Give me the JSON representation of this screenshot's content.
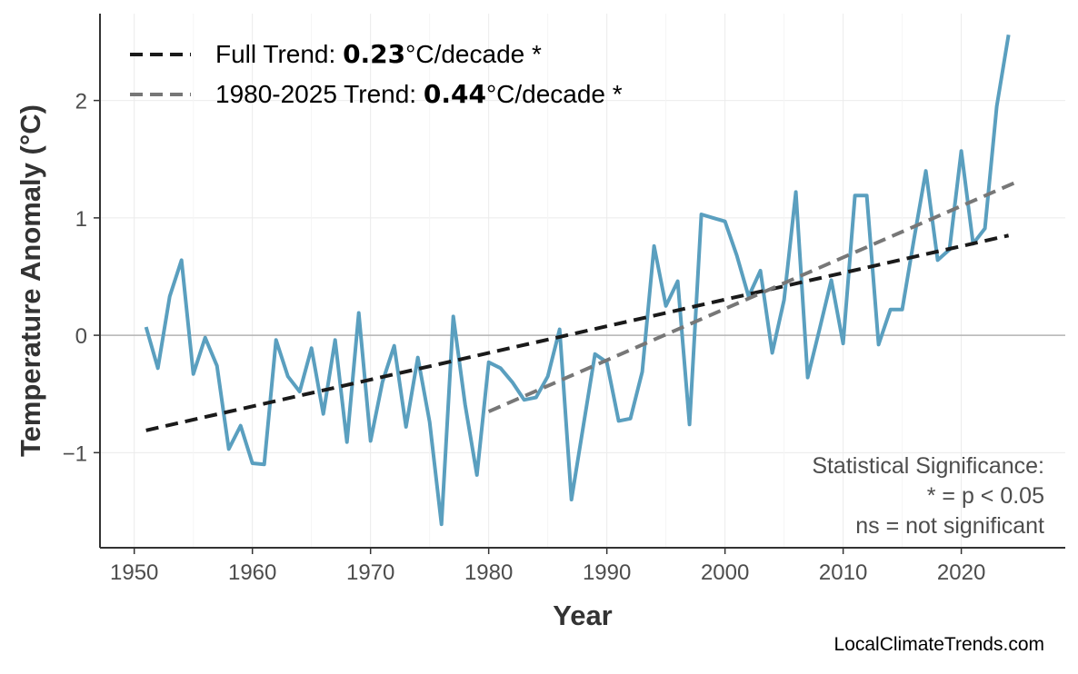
{
  "chart_data": {
    "type": "line",
    "xlabel": "Year",
    "ylabel": "Temperature Anomaly (°C)",
    "xlim": [
      1947.1,
      2028.8
    ],
    "ylim": [
      -1.81,
      2.74
    ],
    "x_ticks": [
      1950,
      1960,
      1970,
      1980,
      1990,
      2000,
      2010,
      2020
    ],
    "y_ticks": [
      -1,
      0,
      1,
      2
    ],
    "y_tick_labels": [
      "−1",
      "0",
      "1",
      "2"
    ],
    "grid": true,
    "zero_line": true,
    "series": [
      {
        "color": "#5a9fbf",
        "x": [
          1951,
          1952,
          1953,
          1954,
          1955,
          1956,
          1957,
          1958,
          1959,
          1960,
          1961,
          1962,
          1963,
          1964,
          1965,
          1966,
          1967,
          1968,
          1969,
          1970,
          1971,
          1972,
          1973,
          1974,
          1975,
          1976,
          1977,
          1978,
          1979,
          1980,
          1981,
          1982,
          1983,
          1984,
          1985,
          1986,
          1987,
          1988,
          1989,
          1990,
          1991,
          1992,
          1993,
          1994,
          1995,
          1996,
          1997,
          1998,
          1999,
          2000,
          2001,
          2002,
          2003,
          2004,
          2005,
          2006,
          2007,
          2008,
          2009,
          2010,
          2011,
          2012,
          2013,
          2014,
          2015,
          2016,
          2017,
          2018,
          2019,
          2020,
          2021,
          2022,
          2023,
          2024
        ],
        "y": [
          0.07,
          -0.28,
          0.33,
          0.64,
          -0.33,
          -0.02,
          -0.26,
          -0.97,
          -0.77,
          -1.09,
          -1.1,
          -0.04,
          -0.35,
          -0.48,
          -0.11,
          -0.67,
          -0.04,
          -0.91,
          0.19,
          -0.9,
          -0.4,
          -0.09,
          -0.78,
          -0.19,
          -0.74,
          -1.61,
          0.16,
          -0.59,
          -1.19,
          -0.23,
          -0.28,
          -0.4,
          -0.55,
          -0.53,
          -0.35,
          0.05,
          -1.4,
          -0.78,
          -0.16,
          -0.23,
          -0.73,
          -0.71,
          -0.31,
          0.76,
          0.25,
          0.46,
          -0.76,
          1.03,
          1.0,
          0.97,
          0.68,
          0.33,
          0.55,
          -0.15,
          0.3,
          1.22,
          -0.36,
          0.05,
          0.47,
          -0.07,
          1.19,
          1.19,
          -0.08,
          0.22,
          0.22,
          0.82,
          1.4,
          0.64,
          0.73,
          1.57,
          0.78,
          0.91,
          1.95,
          2.56
        ]
      }
    ],
    "trend_lines": [
      {
        "x": [
          1951,
          2024
        ],
        "y": [
          -0.81,
          0.85
        ],
        "color": "#1a1a1a"
      },
      {
        "x": [
          1980,
          2025
        ],
        "y": [
          -0.65,
          1.32
        ],
        "color": "#777777"
      }
    ],
    "legend": {
      "placement": "top-left",
      "entries": [
        {
          "prefix": "Full Trend: ",
          "value": "0.23",
          "suffix": "°C/decade *"
        },
        {
          "prefix": "1980-2025 Trend: ",
          "value": "0.44",
          "suffix": "°C/decade *"
        }
      ]
    },
    "annotation": [
      "Statistical Significance:",
      "* = p < 0.05",
      "ns = not significant"
    ],
    "credit": "LocalClimateTrends.com"
  }
}
